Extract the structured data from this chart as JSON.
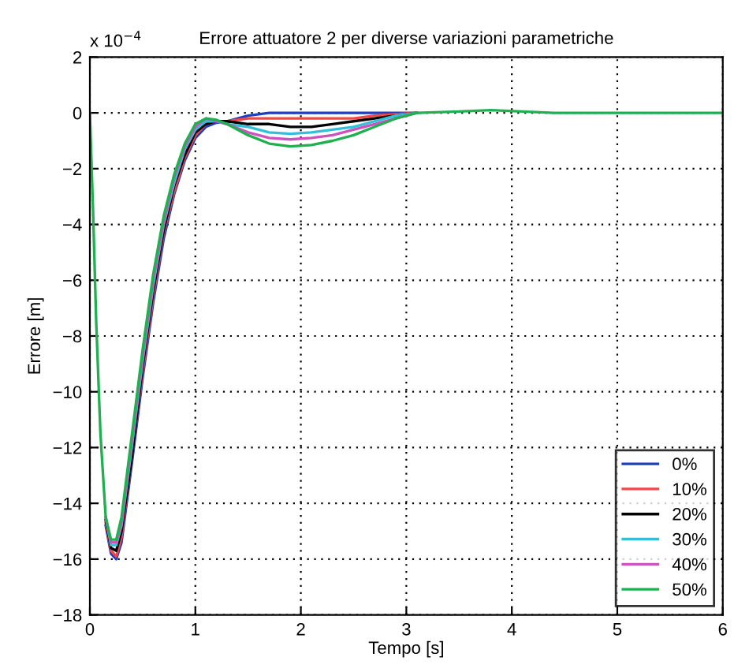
{
  "chart_data": {
    "type": "line",
    "title": "Errore attuatore 2 per diverse variazioni parametriche",
    "xlabel": "Tempo [s]",
    "ylabel": "Errore [m]",
    "annotations": [
      "x 10$^{−4}$"
    ],
    "x": [
      0,
      0.03,
      0.06,
      0.1,
      0.15,
      0.2,
      0.25,
      0.3,
      0.4,
      0.5,
      0.6,
      0.7,
      0.8,
      0.9,
      1.0,
      1.1,
      1.2,
      1.3,
      1.5,
      1.7,
      1.9,
      2.1,
      2.3,
      2.5,
      2.7,
      2.9,
      3.1,
      3.5,
      3.8,
      4.1,
      4.4,
      6
    ],
    "series": [
      {
        "name": "0%",
        "color": "#1f3fbf",
        "values": [
          null,
          null,
          null,
          null,
          -14.8,
          -15.8,
          -16,
          -15.4,
          -12.5,
          -9.5,
          -6.8,
          -4.5,
          -2.9,
          -1.7,
          -0.9,
          -0.5,
          -0.35,
          -0.3,
          -0.1,
          0,
          0,
          0,
          0,
          0,
          0,
          0,
          0,
          null,
          null,
          null,
          null,
          null
        ]
      },
      {
        "name": "10%",
        "color": "#f04848",
        "values": [
          null,
          null,
          null,
          null,
          -14.7,
          -15.7,
          -15.9,
          -15.2,
          -12.3,
          -9.3,
          -6.6,
          -4.3,
          -2.8,
          -1.6,
          -0.8,
          -0.4,
          -0.3,
          -0.3,
          -0.2,
          -0.2,
          -0.2,
          -0.2,
          -0.2,
          -0.2,
          -0.1,
          -0.05,
          0,
          null,
          null,
          null,
          null,
          null
        ]
      },
      {
        "name": "20%",
        "color": "#000000",
        "values": [
          null,
          null,
          null,
          null,
          -14.6,
          -15.6,
          -15.7,
          -15.0,
          -12.3,
          -9.1,
          -6.4,
          -4.2,
          -2.6,
          -1.5,
          -0.7,
          -0.4,
          -0.3,
          -0.3,
          -0.4,
          -0.4,
          -0.5,
          -0.5,
          -0.4,
          -0.3,
          -0.2,
          -0.1,
          0,
          null,
          null,
          null,
          null,
          null
        ]
      },
      {
        "name": "30%",
        "color": "#30c0d8",
        "values": [
          null,
          null,
          null,
          null,
          -14.5,
          -15.5,
          -15.5,
          -14.8,
          -11.9,
          -8.9,
          -6.2,
          -4.0,
          -2.5,
          -1.3,
          -0.6,
          -0.3,
          -0.3,
          -0.4,
          -0.5,
          -0.7,
          -0.75,
          -0.7,
          -0.6,
          -0.5,
          -0.3,
          -0.1,
          0,
          null,
          null,
          null,
          null,
          null
        ]
      },
      {
        "name": "40%",
        "color": "#d050c0",
        "values": [
          null,
          null,
          null,
          null,
          -14.5,
          -15.4,
          -15.4,
          -14.7,
          -11.7,
          -8.7,
          -6.0,
          -3.9,
          -2.3,
          -1.2,
          -0.5,
          -0.2,
          -0.3,
          -0.4,
          -0.7,
          -0.9,
          -0.95,
          -0.9,
          -0.8,
          -0.6,
          -0.4,
          -0.2,
          0,
          null,
          null,
          null,
          null,
          null
        ]
      },
      {
        "name": "50%",
        "color": "#20b050",
        "values": [
          0,
          -3.5,
          -7.5,
          -11.5,
          -14.5,
          -15.3,
          -15.3,
          -14.5,
          -11.5,
          -8.5,
          -5.8,
          -3.7,
          -2.2,
          -1.1,
          -0.4,
          -0.2,
          -0.25,
          -0.4,
          -0.8,
          -1.1,
          -1.2,
          -1.15,
          -1,
          -0.8,
          -0.5,
          -0.2,
          0,
          0.05,
          0.1,
          0.05,
          0,
          0
        ]
      }
    ],
    "xlim": [
      0,
      6
    ],
    "xticks": [
      0,
      1,
      2,
      3,
      4,
      5,
      6
    ],
    "ylim": [
      -18,
      2
    ],
    "yticks": [
      2,
      0,
      -2,
      -4,
      -6,
      -8,
      -10,
      -12,
      -14,
      -16,
      -18
    ],
    "grid": true,
    "legend": "bottom right",
    "marker": "none",
    "line_style": "solid"
  }
}
